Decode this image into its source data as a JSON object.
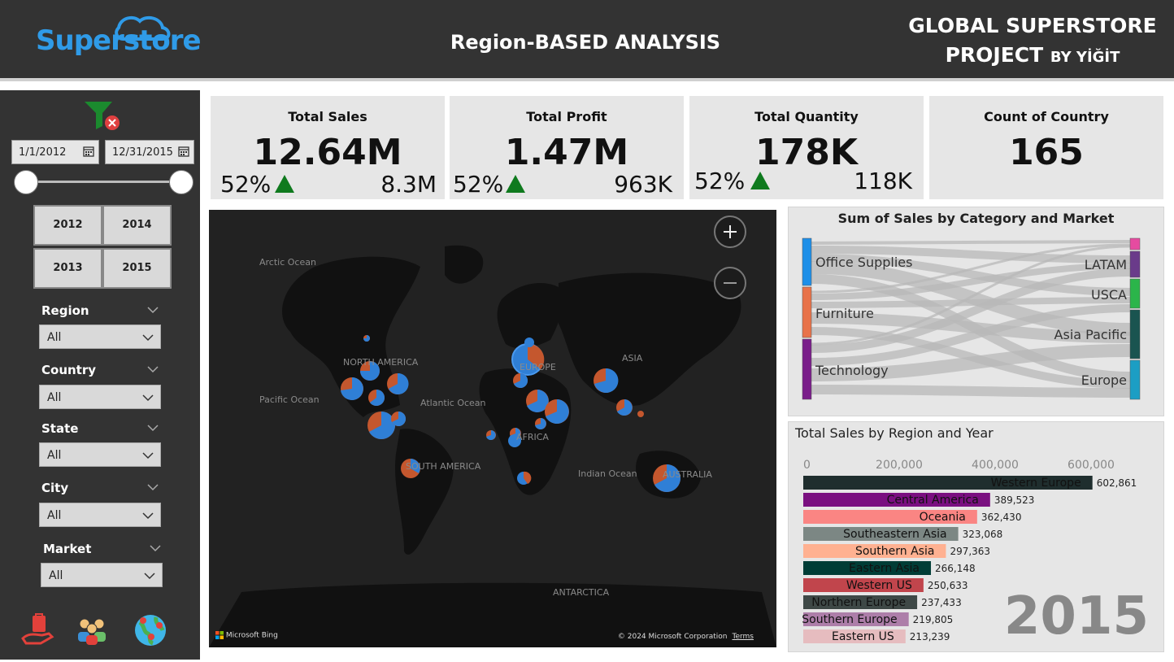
{
  "header": {
    "logo_text": "Superstore",
    "page_title": "Region-BASED ANALYSIS",
    "project_line1": "GLOBAL SUPERSTORE",
    "project_line2": "PROJECT",
    "project_by": "BY YİĞİT"
  },
  "sidebar": {
    "date_start": "1/1/2012",
    "date_end": "12/31/2015",
    "years": [
      "2012",
      "2014",
      "2013",
      "2015"
    ],
    "slicers": [
      {
        "label": "Region",
        "value": "All"
      },
      {
        "label": "Country",
        "value": "All"
      },
      {
        "label": "State",
        "value": "All"
      },
      {
        "label": "City",
        "value": "All"
      },
      {
        "label": "Market",
        "value": "All"
      }
    ],
    "nav_icons": [
      "shopping-bag-hand-icon",
      "people-icon",
      "globe-pins-icon"
    ]
  },
  "kpis": [
    {
      "title": "Total Sales",
      "value": "12.64M",
      "pct": "52%",
      "target": "8.3M"
    },
    {
      "title": "Total Profit",
      "value": "1.47M",
      "pct": "52%",
      "target": "963K"
    },
    {
      "title": "Total Quantity",
      "value": "178K",
      "pct": "52%",
      "target": "118K"
    },
    {
      "title": "Count of Country",
      "value": "165"
    }
  ],
  "map": {
    "labels": [
      "Arctic Ocean",
      "NORTH AMERICA",
      "EUROPE",
      "ASIA",
      "Pacific Ocean",
      "Atlantic Ocean",
      "AFRICA",
      "SOUTH AMERICA",
      "Indian Ocean",
      "AUSTRALIA",
      "ANTARCTICA"
    ],
    "bing": "Microsoft Bing",
    "copyright": "© 2024 Microsoft Corporation",
    "terms": "Terms",
    "colors": {
      "background": "#222222",
      "land": "#111111",
      "pie_a": "#2f7fd6",
      "pie_b": "#c4572e"
    }
  },
  "sankey": {
    "title": "Sum of Sales by Category and Market",
    "categories": [
      "Office Supplies",
      "Furniture",
      "Technology"
    ],
    "markets": [
      "LATAM",
      "USCA",
      "Asia Pacific",
      "Europe"
    ],
    "colors": {
      "cat": [
        "#1e8fe8",
        "#e8734a",
        "#7a1e8a"
      ],
      "market": [
        "#e64ba0",
        "#6a3b8a",
        "#2bb54a",
        "#1a5450",
        "#1c9ec4"
      ]
    }
  },
  "chart_data": {
    "type": "bar",
    "title": "Total Sales by Region and Year",
    "annotation": "2015",
    "xlim": [
      0,
      600000
    ],
    "xticks": [
      "0",
      "200,000",
      "400,000",
      "600,000"
    ],
    "categories": [
      "Western Europe",
      "Central America",
      "Oceania",
      "Southeastern Asia",
      "Southern Asia",
      "Eastern Asia",
      "Western US",
      "Northern Europe",
      "Southern Europe",
      "Eastern US"
    ],
    "values": [
      602861,
      389523,
      362430,
      323068,
      297363,
      266148,
      250633,
      237433,
      219805,
      213239
    ],
    "value_labels": [
      "602,861",
      "389,523",
      "362,430",
      "323,068",
      "297,363",
      "266,148",
      "250,633",
      "237,433",
      "219,805",
      "213,239"
    ],
    "colors": [
      "#1f2e2e",
      "#7a1080",
      "#fa8583",
      "#7c8784",
      "#ffb191",
      "#003d36",
      "#c1454c",
      "#3e4846",
      "#ad7ea9",
      "#e6bcbf"
    ]
  }
}
